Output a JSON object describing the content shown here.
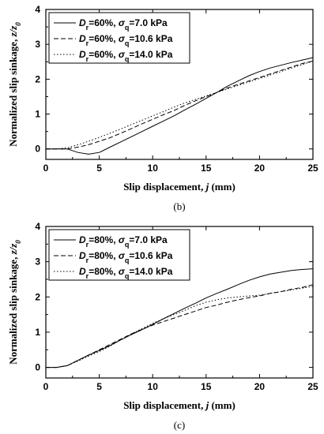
{
  "chart_data": [
    {
      "type": "line",
      "panel_label": "(b)",
      "xlabel": "Slip displacement, j (mm)",
      "ylabel": "Normalized slip sinkage, z/z0",
      "xlim": [
        0,
        25
      ],
      "ylim": [
        -0.3,
        4
      ],
      "xticks": [
        "0",
        "5",
        "10",
        "15",
        "20",
        "25"
      ],
      "yticks": [
        "0",
        "1",
        "2",
        "3",
        "4"
      ],
      "grid": false,
      "legend_position": "top-left",
      "series": [
        {
          "name": "Dr=60%, σq=7.0 kPa",
          "line_style": "solid",
          "x": [
            0,
            1,
            2,
            3,
            4,
            5,
            6,
            7,
            8,
            9,
            10,
            11,
            12,
            13,
            14,
            15,
            16,
            17,
            18,
            19,
            20,
            21,
            22,
            23,
            24,
            25
          ],
          "y": [
            0,
            0,
            0,
            -0.1,
            -0.15,
            -0.1,
            0.05,
            0.2,
            0.35,
            0.5,
            0.65,
            0.8,
            0.95,
            1.12,
            1.28,
            1.45,
            1.62,
            1.8,
            1.95,
            2.1,
            2.22,
            2.32,
            2.4,
            2.48,
            2.55,
            2.62
          ]
        },
        {
          "name": "Dr=60%, σq=10.6 kPa",
          "line_style": "dashed",
          "x": [
            0,
            1,
            2,
            3,
            4,
            5,
            6,
            7,
            8,
            9,
            10,
            11,
            12,
            13,
            14,
            15,
            16,
            17,
            18,
            19,
            20,
            21,
            22,
            23,
            24,
            25
          ],
          "y": [
            0,
            0,
            0,
            0.05,
            0.12,
            0.22,
            0.32,
            0.45,
            0.58,
            0.72,
            0.85,
            0.98,
            1.1,
            1.25,
            1.38,
            1.5,
            1.62,
            1.75,
            1.85,
            1.95,
            2.05,
            2.15,
            2.25,
            2.35,
            2.45,
            2.52
          ]
        },
        {
          "name": "Dr=60%, σq=14.0 kPa",
          "line_style": "dotted",
          "x": [
            0,
            1,
            2,
            3,
            4,
            5,
            6,
            7,
            8,
            9,
            10,
            11,
            12,
            13,
            14,
            15,
            16,
            17,
            18,
            19,
            20,
            21,
            22,
            23,
            24,
            25
          ],
          "y": [
            0,
            0,
            0.03,
            0.12,
            0.22,
            0.33,
            0.45,
            0.57,
            0.7,
            0.82,
            0.95,
            1.07,
            1.2,
            1.32,
            1.42,
            1.52,
            1.62,
            1.72,
            1.82,
            1.92,
            2.02,
            2.12,
            2.22,
            2.32,
            2.42,
            2.52
          ]
        }
      ]
    },
    {
      "type": "line",
      "panel_label": "(c)",
      "xlabel": "Slip displacement, j (mm)",
      "ylabel": "Normalized slip sinkage, z/z0",
      "xlim": [
        0,
        25
      ],
      "ylim": [
        -0.3,
        4
      ],
      "xticks": [
        "0",
        "5",
        "10",
        "15",
        "20",
        "25"
      ],
      "yticks": [
        "0",
        "1",
        "2",
        "3",
        "4"
      ],
      "grid": false,
      "legend_position": "top-left",
      "series": [
        {
          "name": "Dr=80%, σq=7.0 kPa",
          "line_style": "solid",
          "x": [
            0,
            1,
            2,
            3,
            4,
            5,
            6,
            7,
            8,
            9,
            10,
            11,
            12,
            13,
            14,
            15,
            16,
            17,
            18,
            19,
            20,
            21,
            22,
            23,
            24,
            25
          ],
          "y": [
            0,
            0,
            0.05,
            0.2,
            0.35,
            0.48,
            0.62,
            0.78,
            0.93,
            1.07,
            1.22,
            1.38,
            1.53,
            1.68,
            1.82,
            1.97,
            2.1,
            2.22,
            2.35,
            2.47,
            2.57,
            2.65,
            2.7,
            2.75,
            2.78,
            2.8
          ]
        },
        {
          "name": "Dr=80%, σq=10.6 kPa",
          "line_style": "dashed",
          "x": [
            0,
            1,
            2,
            3,
            4,
            5,
            6,
            7,
            8,
            9,
            10,
            11,
            12,
            13,
            14,
            15,
            16,
            17,
            18,
            19,
            20,
            21,
            22,
            23,
            24,
            25
          ],
          "y": [
            0,
            0,
            0.05,
            0.2,
            0.35,
            0.5,
            0.65,
            0.8,
            0.95,
            1.08,
            1.2,
            1.3,
            1.4,
            1.5,
            1.6,
            1.7,
            1.77,
            1.85,
            1.92,
            1.98,
            2.03,
            2.1,
            2.15,
            2.22,
            2.27,
            2.35
          ]
        },
        {
          "name": "Dr=80%, σq=14.0 kPa",
          "line_style": "dotted",
          "x": [
            0,
            1,
            2,
            3,
            4,
            5,
            6,
            7,
            8,
            9,
            10,
            11,
            12,
            13,
            14,
            15,
            16,
            17,
            18,
            19,
            20,
            21,
            22,
            23,
            24,
            25
          ],
          "y": [
            0,
            0,
            0.05,
            0.18,
            0.32,
            0.45,
            0.6,
            0.78,
            0.95,
            1.1,
            1.25,
            1.38,
            1.5,
            1.62,
            1.75,
            1.85,
            1.92,
            1.97,
            2.0,
            2.03,
            2.05,
            2.1,
            2.15,
            2.2,
            2.25,
            2.3
          ]
        }
      ]
    }
  ]
}
